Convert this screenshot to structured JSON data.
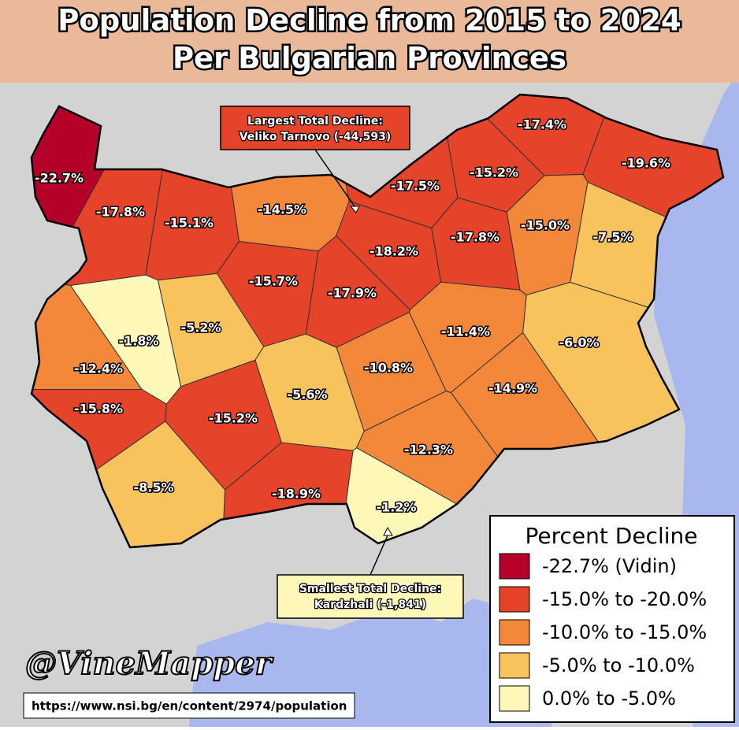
{
  "header": {
    "title_line1": "Population Decline from 2015 to 2024",
    "title_line2": "Per Bulgarian Provinces"
  },
  "provinces": [
    {
      "label": "-22.7%",
      "color": "#b5002a"
    },
    {
      "label": "-17.8%",
      "color": "#e5432a"
    },
    {
      "label": "-15.1%",
      "color": "#e5432a"
    },
    {
      "label": "-14.5%",
      "color": "#f3883a"
    },
    {
      "label": "-17.5%",
      "color": "#e5432a"
    },
    {
      "label": "-15.2%",
      "color": "#e5432a"
    },
    {
      "label": "-17.4%",
      "color": "#e5432a"
    },
    {
      "label": "-19.6%",
      "color": "#e5432a"
    },
    {
      "label": "-15.0%",
      "color": "#f3883a"
    },
    {
      "label": "-7.5%",
      "color": "#f8c25c"
    },
    {
      "label": "-18.2%",
      "color": "#e5432a"
    },
    {
      "label": "-17.8%",
      "color": "#e5432a"
    },
    {
      "label": "-15.7%",
      "color": "#e5432a"
    },
    {
      "label": "-17.9%",
      "color": "#e5432a"
    },
    {
      "label": "-5.2%",
      "color": "#f8c25c"
    },
    {
      "label": "-1.8%",
      "color": "#fdf8b8"
    },
    {
      "label": "-12.4%",
      "color": "#f3883a"
    },
    {
      "label": "-15.8%",
      "color": "#e5432a"
    },
    {
      "label": "-11.4%",
      "color": "#f3883a"
    },
    {
      "label": "-6.0%",
      "color": "#f8c25c"
    },
    {
      "label": "-10.8%",
      "color": "#f3883a"
    },
    {
      "label": "-14.9%",
      "color": "#f3883a"
    },
    {
      "label": "-5.6%",
      "color": "#f8c25c"
    },
    {
      "label": "-15.2%",
      "color": "#e5432a"
    },
    {
      "label": "-12.3%",
      "color": "#f3883a"
    },
    {
      "label": "-8.5%",
      "color": "#f8c25c"
    },
    {
      "label": "-18.9%",
      "color": "#e5432a"
    },
    {
      "label": "-1.2%",
      "color": "#fdf8b8"
    }
  ],
  "callouts": [
    {
      "lines": [
        "Largest Total Decline:",
        "Veliko Tarnovo (-44,593)"
      ],
      "color": "#e5432a"
    },
    {
      "lines": [
        "Smallest Total Decline:",
        "Kardzhali (-1,841)"
      ],
      "color": "#fdf8b8"
    }
  ],
  "legend": {
    "title": "Percent Decline",
    "entries": [
      {
        "label": "-22.7% (Vidin)",
        "color": "#b5002a"
      },
      {
        "label": "-15.0% to -20.0%",
        "color": "#e5432a"
      },
      {
        "label": "-10.0% to -15.0%",
        "color": "#f3883a"
      },
      {
        "label": "-5.0% to -10.0%",
        "color": "#f8c25c"
      },
      {
        "label": "0.0% to -5.0%",
        "color": "#fdf8b8"
      }
    ]
  },
  "watermark": "@VineMapper",
  "source": "https://www.nsi.bg/en/content/2974/population"
}
